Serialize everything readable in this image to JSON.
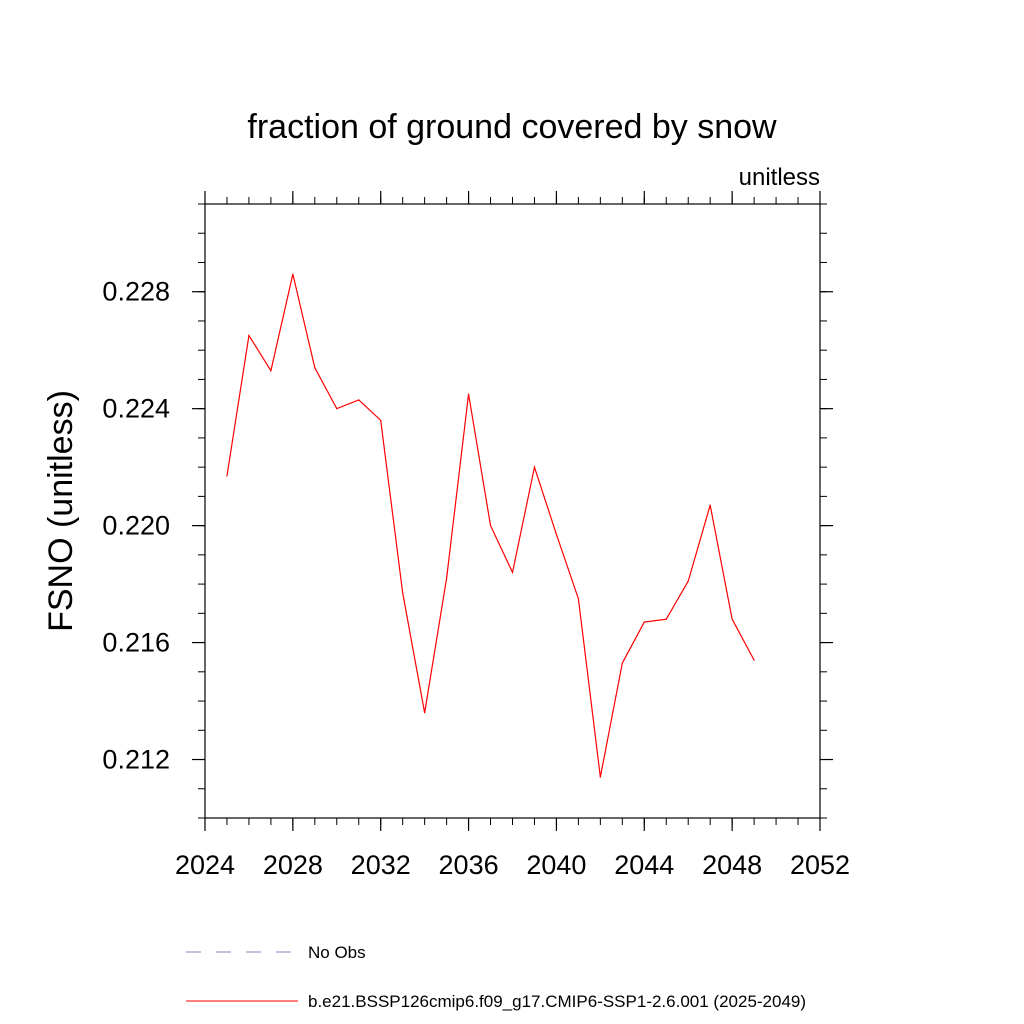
{
  "chart_data": {
    "type": "line",
    "title": "fraction of ground covered by snow",
    "units_label": "unitless",
    "xlabel": "",
    "ylabel": "FSNO  (unitless)",
    "xlim": [
      2024,
      2052
    ],
    "ylim": [
      0.21,
      0.231
    ],
    "x_ticks": [
      {
        "value": 2024,
        "label": "2024"
      },
      {
        "value": 2028,
        "label": "2028"
      },
      {
        "value": 2032,
        "label": "2032"
      },
      {
        "value": 2036,
        "label": "2036"
      },
      {
        "value": 2040,
        "label": "2040"
      },
      {
        "value": 2044,
        "label": "2044"
      },
      {
        "value": 2048,
        "label": "2048"
      },
      {
        "value": 2052,
        "label": "2052"
      }
    ],
    "y_ticks": [
      {
        "value": 0.212,
        "label": "0.212"
      },
      {
        "value": 0.216,
        "label": "0.216"
      },
      {
        "value": 0.22,
        "label": "0.220"
      },
      {
        "value": 0.224,
        "label": "0.224"
      },
      {
        "value": 0.228,
        "label": "0.228"
      }
    ],
    "x_minor_step": 1,
    "y_minor_step": 0.001,
    "grid": false,
    "series": [
      {
        "name": "b.e21.BSSP126cmip6.f09_g17.CMIP6-SSP1-2.6.001 (2025-2049)",
        "color": "#ff0000",
        "style": "solid",
        "x": [
          2025,
          2026,
          2027,
          2028,
          2029,
          2030,
          2031,
          2032,
          2033,
          2034,
          2035,
          2036,
          2037,
          2038,
          2039,
          2040,
          2041,
          2042,
          2043,
          2044,
          2045,
          2046,
          2047,
          2048,
          2049
        ],
        "y": [
          0.2217,
          0.2265,
          0.2253,
          0.2286,
          0.2254,
          0.224,
          0.2243,
          0.2236,
          0.2177,
          0.2136,
          0.2182,
          0.2245,
          0.22,
          0.2184,
          0.222,
          0.2197,
          0.2175,
          0.2114,
          0.2153,
          0.2167,
          0.2168,
          0.2181,
          0.2207,
          0.2168,
          0.2154
        ]
      }
    ],
    "legend": [
      {
        "label": "No Obs",
        "color": "#8080c0",
        "style": "dashed"
      },
      {
        "label": "b.e21.BSSP126cmip6.f09_g17.CMIP6-SSP1-2.6.001 (2025-2049)",
        "color": "#ff0000",
        "style": "solid"
      }
    ],
    "legend_position": "bottom"
  }
}
